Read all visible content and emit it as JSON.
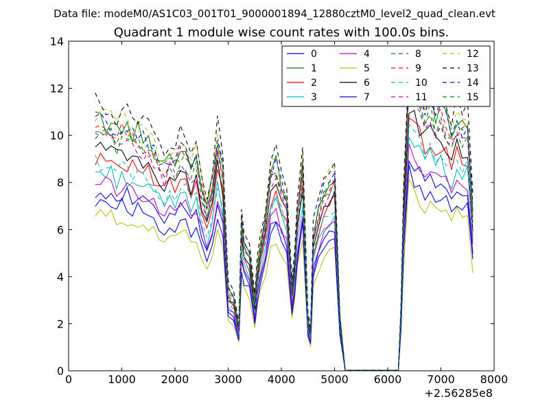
{
  "figure": {
    "suptitle": "Data file: modeM0/AS1C03_001T01_9000001894_12880cztM0_level2_quad_clean.evt",
    "x_offset_label": "+2.56285e8"
  },
  "chart_data": {
    "type": "line",
    "title": "Quadrant 1 module wise count rates with 100.0s bins.",
    "xlabel": "",
    "ylabel": "",
    "xlim": [
      0,
      8000
    ],
    "ylim": [
      0,
      14
    ],
    "x_offset": "+2.56285e8",
    "xticks": [
      "0",
      "1000",
      "2000",
      "3000",
      "4000",
      "5000",
      "6000",
      "7000",
      "8000"
    ],
    "yticks": [
      "0",
      "2",
      "4",
      "6",
      "8",
      "10",
      "12",
      "14"
    ],
    "legend": {
      "location": "top-right",
      "columns": 4,
      "entries": [
        "0",
        "1",
        "2",
        "3",
        "4",
        "5",
        "6",
        "7",
        "8",
        "9",
        "10",
        "11",
        "12",
        "13",
        "14",
        "15"
      ]
    },
    "x": [
      500,
      600,
      700,
      800,
      900,
      1000,
      1100,
      1200,
      1300,
      1400,
      1500,
      1600,
      1700,
      1800,
      1900,
      2000,
      2100,
      2200,
      2300,
      2400,
      2500,
      2600,
      2700,
      2800,
      2900,
      3000,
      3100,
      3200,
      3250,
      3300,
      3400,
      3500,
      3550,
      3600,
      3700,
      3800,
      3900,
      4000,
      4100,
      4200,
      4250,
      4300,
      4400,
      4500,
      4550,
      4600,
      4700,
      4800,
      4900,
      5000,
      5100,
      5200,
      5300,
      5400,
      5500,
      5600,
      5700,
      5800,
      5900,
      6000,
      6100,
      6200,
      6250,
      6300,
      6400,
      6500,
      6600,
      6700,
      6800,
      6900,
      7000,
      7100,
      7200,
      7300,
      7400,
      7500,
      7600
    ],
    "base_profile": [
      10.0,
      10.1,
      9.9,
      10.0,
      9.6,
      9.8,
      9.7,
      9.5,
      9.6,
      9.3,
      9.2,
      8.9,
      8.6,
      8.3,
      8.7,
      8.5,
      8.9,
      8.7,
      8.2,
      8.6,
      7.5,
      6.5,
      7.6,
      9.2,
      8.2,
      3.3,
      3.0,
      1.8,
      6.0,
      5.2,
      4.8,
      2.8,
      4.2,
      5.0,
      6.2,
      8.0,
      8.4,
      7.6,
      7.0,
      3.3,
      4.4,
      6.5,
      8.4,
      2.1,
      1.6,
      5.5,
      6.5,
      7.3,
      7.6,
      7.9,
      2.2,
      0.05,
      0.05,
      0.05,
      0.05,
      0.05,
      0.05,
      0.05,
      0.05,
      0.05,
      0.05,
      0.05,
      2.5,
      7.0,
      12.0,
      11.3,
      11.0,
      10.5,
      10.9,
      10.2,
      10.5,
      10.0,
      9.6,
      10.1,
      9.8,
      9.9,
      6.5
    ],
    "series": [
      {
        "name": "0",
        "color": "#0000ff",
        "dash": "solid",
        "scale": 0.77
      },
      {
        "name": "1",
        "color": "#008000",
        "dash": "solid",
        "scale": 1.06
      },
      {
        "name": "2",
        "color": "#ff0000",
        "dash": "solid",
        "scale": 0.91
      },
      {
        "name": "3",
        "color": "#00bfbf",
        "dash": "solid",
        "scale": 0.84
      },
      {
        "name": "4",
        "color": "#bf00bf",
        "dash": "solid",
        "scale": 0.8
      },
      {
        "name": "5",
        "color": "#bfbf00",
        "dash": "solid",
        "scale": 0.66
      },
      {
        "name": "6",
        "color": "#000000",
        "dash": "solid",
        "scale": 0.94
      },
      {
        "name": "7",
        "color": "#0000ff",
        "dash": "solid",
        "scale": 0.72
      },
      {
        "name": "8",
        "color": "#008000",
        "dash": "dashed",
        "scale": 1.0
      },
      {
        "name": "9",
        "color": "#ff0000",
        "dash": "dashed",
        "scale": 1.03
      },
      {
        "name": "10",
        "color": "#00bfbf",
        "dash": "dashed",
        "scale": 0.88
      },
      {
        "name": "11",
        "color": "#bf00bf",
        "dash": "dashed",
        "scale": 0.98
      },
      {
        "name": "12",
        "color": "#bfbf00",
        "dash": "dashed",
        "scale": 1.09
      },
      {
        "name": "13",
        "color": "#000000",
        "dash": "dashed",
        "scale": 1.13
      },
      {
        "name": "14",
        "color": "#0000ff",
        "dash": "dashed",
        "scale": 1.05
      },
      {
        "name": "15",
        "color": "#008000",
        "dash": "dashed",
        "scale": 1.02
      }
    ]
  }
}
